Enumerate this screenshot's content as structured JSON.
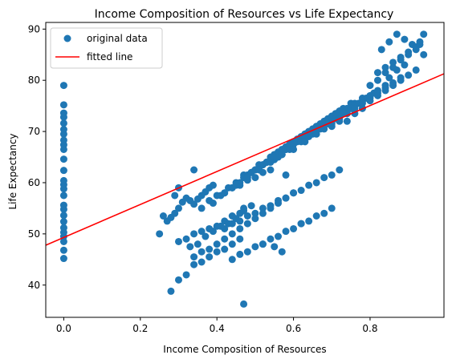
{
  "chart_data": {
    "type": "scatter",
    "title": "Income Composition of Resources vs Life Expectancy",
    "xlabel": "Income Composition of Resources",
    "ylabel": "Life Expectancy",
    "xlim": [
      -0.047,
      0.993
    ],
    "ylim": [
      33.7,
      91.3
    ],
    "xticks": [
      0.0,
      0.2,
      0.4,
      0.6,
      0.8
    ],
    "xtick_labels": [
      "0.0",
      "0.2",
      "0.4",
      "0.6",
      "0.8"
    ],
    "yticks": [
      40,
      50,
      60,
      70,
      80,
      90
    ],
    "ytick_labels": [
      "40",
      "50",
      "60",
      "70",
      "80",
      "90"
    ],
    "grid": false,
    "legend_position": "upper left",
    "colors": {
      "points": "#1f77b4",
      "fit": "#ff0000"
    },
    "series": [
      {
        "name": "original data",
        "kind": "points",
        "x": [
          0,
          0,
          0,
          0,
          0,
          0,
          0,
          0,
          0,
          0,
          0,
          0,
          0,
          0,
          0,
          0,
          0,
          0,
          0,
          0,
          0,
          0,
          0,
          0,
          0,
          0,
          0.25,
          0.27,
          0.28,
          0.29,
          0.3,
          0.31,
          0.32,
          0.33,
          0.34,
          0.35,
          0.36,
          0.37,
          0.38,
          0.39,
          0.3,
          0.32,
          0.34,
          0.36,
          0.38,
          0.4,
          0.42,
          0.44,
          0.46,
          0.47,
          0.33,
          0.35,
          0.37,
          0.39,
          0.41,
          0.43,
          0.45,
          0.47,
          0.49,
          0.36,
          0.38,
          0.4,
          0.42,
          0.44,
          0.46,
          0.48,
          0.5,
          0.52,
          0.54,
          0.39,
          0.41,
          0.43,
          0.45,
          0.47,
          0.49,
          0.51,
          0.53,
          0.55,
          0.57,
          0.42,
          0.44,
          0.46,
          0.48,
          0.5,
          0.52,
          0.54,
          0.56,
          0.58,
          0.6,
          0.45,
          0.47,
          0.49,
          0.51,
          0.53,
          0.55,
          0.57,
          0.59,
          0.61,
          0.63,
          0.48,
          0.5,
          0.52,
          0.54,
          0.56,
          0.58,
          0.6,
          0.62,
          0.64,
          0.66,
          0.51,
          0.53,
          0.55,
          0.57,
          0.59,
          0.61,
          0.63,
          0.65,
          0.67,
          0.69,
          0.54,
          0.56,
          0.58,
          0.6,
          0.62,
          0.64,
          0.66,
          0.68,
          0.7,
          0.72,
          0.57,
          0.59,
          0.61,
          0.63,
          0.65,
          0.67,
          0.69,
          0.71,
          0.73,
          0.75,
          0.6,
          0.62,
          0.64,
          0.66,
          0.68,
          0.7,
          0.72,
          0.74,
          0.76,
          0.78,
          0.63,
          0.65,
          0.67,
          0.69,
          0.71,
          0.73,
          0.75,
          0.77,
          0.79,
          0.81,
          0.66,
          0.68,
          0.7,
          0.72,
          0.74,
          0.76,
          0.78,
          0.8,
          0.82,
          0.84,
          0.7,
          0.72,
          0.74,
          0.76,
          0.78,
          0.8,
          0.82,
          0.84,
          0.86,
          0.88,
          0.74,
          0.76,
          0.78,
          0.8,
          0.82,
          0.84,
          0.86,
          0.88,
          0.9,
          0.92,
          0.8,
          0.82,
          0.84,
          0.86,
          0.88,
          0.9,
          0.92,
          0.93,
          0.94,
          0.83,
          0.85,
          0.87,
          0.89,
          0.91,
          0.92,
          0.94,
          0.42,
          0.44,
          0.46,
          0.48,
          0.5,
          0.52,
          0.54,
          0.56,
          0.58,
          0.6,
          0.62,
          0.64,
          0.66,
          0.68,
          0.7,
          0.72,
          0.44,
          0.46,
          0.48,
          0.5,
          0.52,
          0.54,
          0.56,
          0.58,
          0.6,
          0.62,
          0.64,
          0.66,
          0.68,
          0.7,
          0.34,
          0.36,
          0.38,
          0.4,
          0.42,
          0.44,
          0.46,
          0.48,
          0.5,
          0.52,
          0.54,
          0.56,
          0.58,
          0.6,
          0.28,
          0.3,
          0.32,
          0.34,
          0.36,
          0.38,
          0.4,
          0.42,
          0.44,
          0.46,
          0.47,
          0.29,
          0.3,
          0.34,
          0.55,
          0.57,
          0.62,
          0.52,
          0.58,
          0.26,
          0.82,
          0.84,
          0.86,
          0.88,
          0.9,
          0.92,
          0.93,
          0.85,
          0.87,
          0.89
        ],
        "y": [
          45.2,
          46.8,
          48.5,
          49.5,
          50.3,
          51.2,
          52.4,
          53.6,
          54.8,
          55.6,
          57.5,
          58.8,
          59.6,
          60.4,
          62.4,
          64.6,
          66.5,
          67.4,
          68.3,
          69.5,
          70.4,
          71.6,
          72.8,
          73.6,
          75.2,
          79,
          50,
          52.5,
          53.2,
          54,
          55,
          56.2,
          57,
          56.5,
          55.8,
          56.8,
          57.5,
          58.2,
          59,
          59.5,
          48.5,
          49,
          50,
          50.5,
          51,
          51.5,
          52.5,
          53.5,
          54,
          55,
          47.5,
          48,
          49.5,
          50.5,
          51.5,
          52,
          53,
          54.5,
          55.5,
          55,
          56.5,
          57.5,
          58,
          59,
          59.5,
          60.5,
          61,
          62,
          62.5,
          56,
          57.5,
          59,
          60,
          61.5,
          62,
          63,
          64,
          64.5,
          65.5,
          58,
          59,
          60,
          61.5,
          62.5,
          63.5,
          64.5,
          65.5,
          66.5,
          67.5,
          59.5,
          61,
          62,
          63.5,
          64,
          65.5,
          66.5,
          67.5,
          68.5,
          69.5,
          61,
          62.5,
          63.5,
          65,
          66,
          67,
          68,
          69,
          70,
          71,
          62.5,
          64,
          65,
          66,
          67.5,
          68.5,
          69.5,
          70.5,
          71.5,
          72.5,
          64,
          65,
          66.5,
          67.5,
          68.5,
          70,
          71,
          72,
          73,
          74,
          65.5,
          66.5,
          68,
          69,
          70,
          71,
          72,
          73.5,
          74.5,
          75.5,
          66.5,
          68,
          69,
          70.5,
          71.5,
          72.5,
          73.5,
          74.5,
          75.5,
          76.5,
          68,
          69.5,
          70.5,
          71.5,
          72.5,
          73.5,
          74.5,
          75.5,
          76.5,
          77.5,
          69.5,
          70.5,
          71.5,
          72.5,
          73.5,
          75,
          76,
          77,
          78,
          79,
          71,
          72,
          73.5,
          74.5,
          75.5,
          76.5,
          77.5,
          78.5,
          79.5,
          80.5,
          72,
          73.5,
          74.5,
          76,
          77,
          78,
          79,
          80,
          81,
          82,
          79,
          80,
          81.5,
          82.5,
          84,
          85,
          86.5,
          87.5,
          89,
          86,
          87.5,
          89,
          88,
          87,
          86,
          85,
          51,
          52,
          52.5,
          53.5,
          54,
          55,
          55.5,
          56.5,
          57,
          58,
          58.5,
          59.5,
          60,
          61,
          61.5,
          62.5,
          45,
          46,
          46.5,
          47.5,
          48,
          49,
          49.5,
          50.5,
          51,
          52,
          52.5,
          53.5,
          54,
          55,
          45.5,
          46.5,
          47,
          48,
          49,
          50,
          51,
          52,
          53,
          54,
          55,
          56,
          57,
          58,
          38.8,
          41,
          42,
          44,
          44.5,
          45.5,
          46.5,
          47,
          48,
          49,
          36.3,
          57.5,
          59,
          62.5,
          47.5,
          46.5,
          52,
          48,
          61.5,
          53.5,
          81.5,
          82.5,
          83.5,
          84.5,
          85.5,
          86.5,
          87,
          80.5,
          82,
          83
        ]
      },
      {
        "name": "fitted line",
        "kind": "line",
        "intercept": 49.3,
        "slope": 32.2
      }
    ]
  }
}
